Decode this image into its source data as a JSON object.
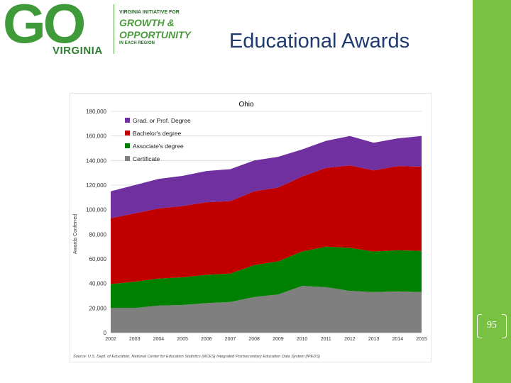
{
  "logo": {
    "go": "GO",
    "virginia": "VIRGINIA",
    "tagline_line1": "VIRGINIA INITIATIVE FOR",
    "tagline_line2": "GROWTH &",
    "tagline_line3": "OPPORTUNITY",
    "tagline_line4": "IN EACH REGION"
  },
  "slide": {
    "title": "Educational Awards",
    "page_number": "95"
  },
  "colors": {
    "right_bar": "#79c142",
    "grad": "#7030a0",
    "bachelor": "#c00000",
    "associate": "#008000",
    "certificate": "#7f7f7f"
  },
  "chart_data": {
    "type": "area",
    "stacked": true,
    "title": "Ohio",
    "ylabel": "Awards Conferred",
    "xlabel": "",
    "x": [
      "2002",
      "2003",
      "2004",
      "2005",
      "2006",
      "2007",
      "2008",
      "2009",
      "2010",
      "2011",
      "2012",
      "2013",
      "2014",
      "2015"
    ],
    "ylim": [
      0,
      180000
    ],
    "yticks": [
      "0",
      "20,000",
      "40,000",
      "60,000",
      "80,000",
      "100,000",
      "120,000",
      "140,000",
      "160,000",
      "180,000"
    ],
    "ytick_values": [
      0,
      20000,
      40000,
      60000,
      80000,
      100000,
      120000,
      140000,
      160000,
      180000
    ],
    "grid": true,
    "legend_position": "top-left",
    "series": [
      {
        "name": "Certificate",
        "color": "#7f7f7f",
        "values": [
          20000,
          20000,
          22000,
          22500,
          24000,
          25000,
          29000,
          31000,
          38000,
          37000,
          34000,
          33000,
          33500,
          33000
        ]
      },
      {
        "name": "Associate's degree",
        "color": "#008000",
        "values": [
          19500,
          21500,
          22000,
          22500,
          23000,
          23000,
          26000,
          27000,
          28000,
          33000,
          35000,
          33000,
          33500,
          33500
        ]
      },
      {
        "name": "Bachelor's degree",
        "color": "#c00000",
        "values": [
          53500,
          55500,
          57000,
          58000,
          59000,
          59000,
          60000,
          60000,
          61000,
          64000,
          67000,
          66000,
          68500,
          68500
        ]
      },
      {
        "name": "Grad. or Prof. Degree",
        "color": "#7030a0",
        "values": [
          22000,
          23000,
          24000,
          24500,
          25500,
          26000,
          25000,
          25000,
          22000,
          22000,
          24000,
          22500,
          22500,
          25000
        ]
      }
    ],
    "legend": [
      "Grad. or Prof. Degree",
      "Bachelor's degree",
      "Associate's degree",
      "Certificate"
    ],
    "source": "Source: U.S. Dept. of Education, National Center for Education Statistics (NCES) Integrated Postsecondary Education Data System (IPEDS)"
  }
}
